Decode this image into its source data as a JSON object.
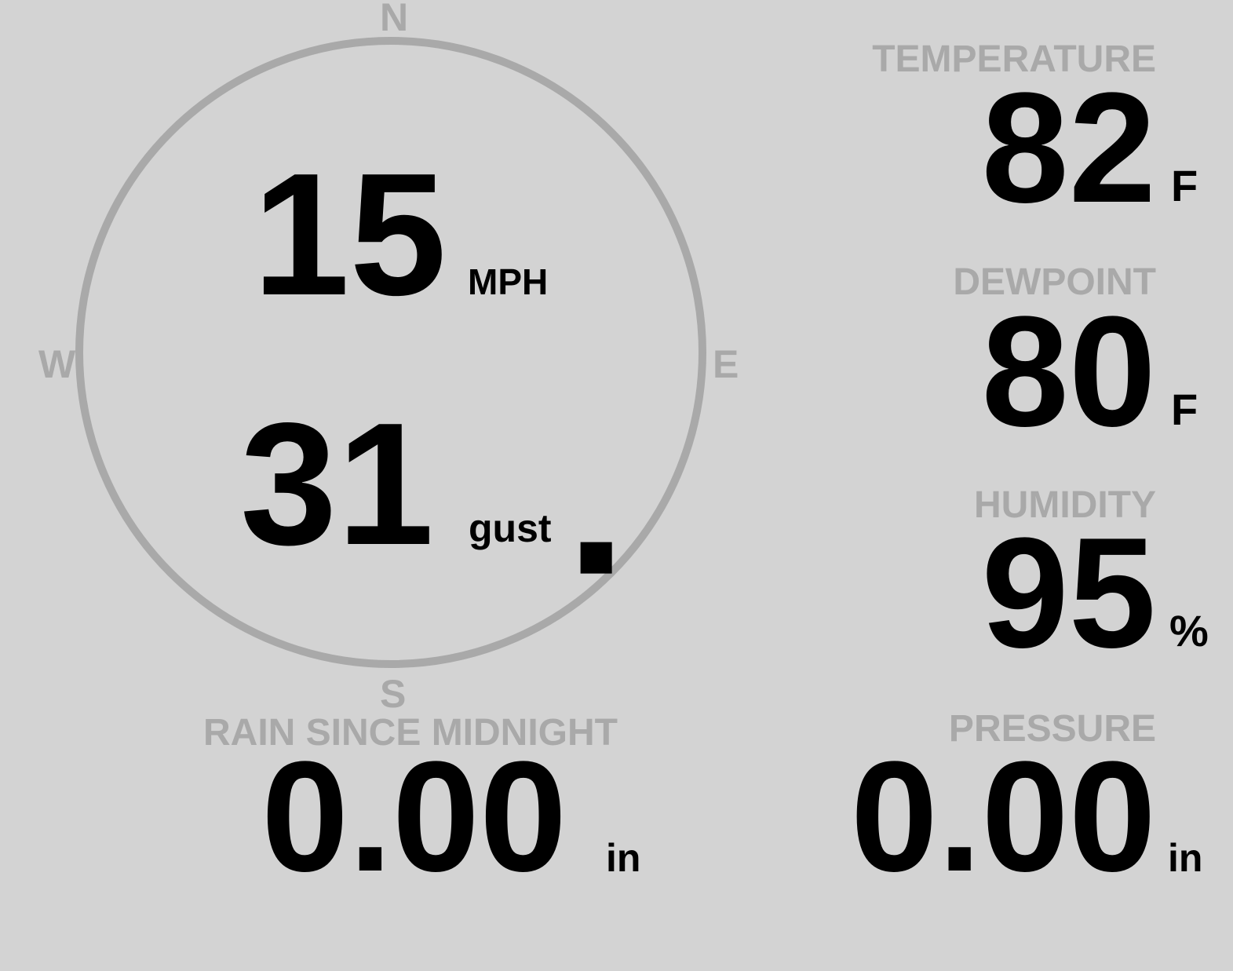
{
  "colors": {
    "background": "#d3d3d3",
    "label": "#a9a9a9",
    "value": "#000000",
    "ring": "#a9a9a9",
    "pointer": "#000000"
  },
  "compass": {
    "north": "N",
    "east": "E",
    "south": "S",
    "west": "W",
    "wind_direction_deg": 135,
    "pointer_icon": "diamond"
  },
  "wind": {
    "speed": "15",
    "speed_unit": "MPH",
    "gust": "31",
    "gust_unit": "gust"
  },
  "temperature": {
    "label": "TEMPERATURE",
    "value": "82",
    "unit": "F"
  },
  "dewpoint": {
    "label": "DEWPOINT",
    "value": "80",
    "unit": "F"
  },
  "humidity": {
    "label": "HUMIDITY",
    "value": "95",
    "unit": "%"
  },
  "rain": {
    "label": "RAIN SINCE MIDNIGHT",
    "value": "0.00",
    "unit": "in"
  },
  "pressure": {
    "label": "PRESSURE",
    "value": "0.00",
    "unit": "in"
  }
}
